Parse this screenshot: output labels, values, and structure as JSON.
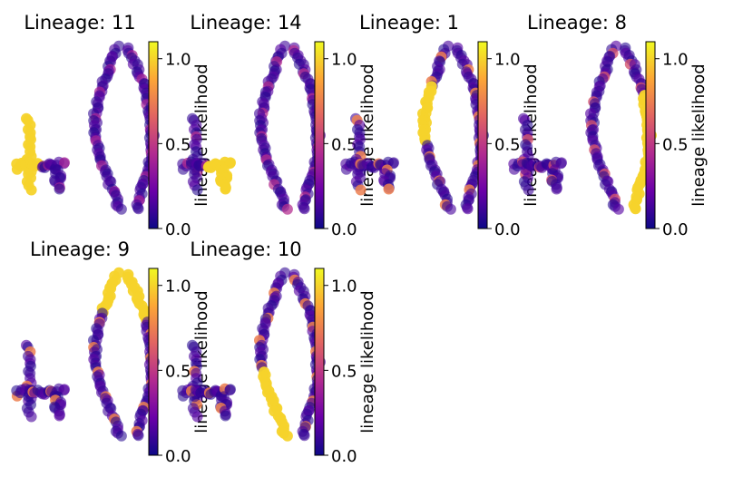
{
  "chart_data": {
    "type": "scatter",
    "layout": "grid of scatter embeddings, 2 rows x 4 columns (6 panels used)",
    "colormap": "plasma",
    "colormap_stops": [
      "#0d0887",
      "#6a00a8",
      "#b12a90",
      "#e16462",
      "#fca636",
      "#f0f921"
    ],
    "colorbar": {
      "label": "lineage likelihood",
      "range": [
        0.0,
        1.1
      ],
      "ticks": [
        {
          "value": 0.0,
          "label": "0.0"
        },
        {
          "value": 0.5,
          "label": "0.5"
        },
        {
          "value": 1.0,
          "label": "1.0"
        }
      ]
    },
    "axes_visible": false,
    "grid": false,
    "panels": [
      {
        "title": "Lineage: 11",
        "highlight": "left-branch",
        "level": 1.0,
        "secondary": 0.4
      },
      {
        "title": "Lineage: 14",
        "highlight": "left-lower",
        "level": 1.0,
        "secondary": 0.45
      },
      {
        "title": "Lineage: 1",
        "highlight": "loop-left",
        "level": 1.0,
        "secondary": 0.75
      },
      {
        "title": "Lineage: 8",
        "highlight": "loop-right",
        "level": 1.0,
        "secondary": 0.75
      },
      {
        "title": "Lineage: 9",
        "highlight": "loop-top",
        "level": 1.0,
        "secondary": 0.75
      },
      {
        "title": "Lineage: 10",
        "highlight": "loop-left-lower",
        "level": 1.0,
        "secondary": 0.75
      }
    ]
  }
}
